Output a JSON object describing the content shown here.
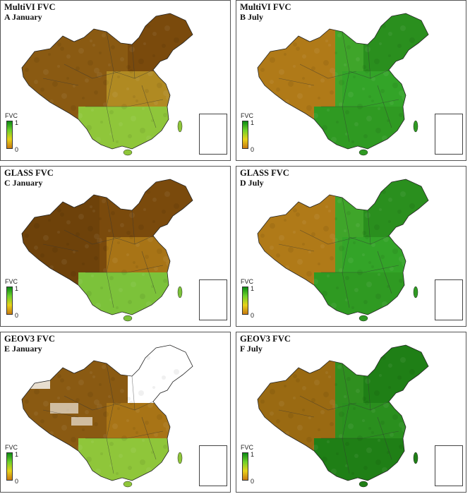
{
  "panels": [
    {
      "title": "MultiVI FVC",
      "subtitle": "A January",
      "color_scheme": "winter-mixed"
    },
    {
      "title": "MultiVI FVC",
      "subtitle": "B July",
      "color_scheme": "summer-green"
    },
    {
      "title": "GLASS FVC",
      "subtitle": "C January",
      "color_scheme": "winter-brown"
    },
    {
      "title": "GLASS FVC",
      "subtitle": "D July",
      "color_scheme": "summer-green"
    },
    {
      "title": "GEOV3 FVC",
      "subtitle": "E January",
      "color_scheme": "winter-snow"
    },
    {
      "title": "GEOV3 FVC",
      "subtitle": "F July",
      "color_scheme": "summer-dark"
    }
  ],
  "legend": {
    "label": "FVC",
    "max": "1",
    "min": "0"
  },
  "colors": {
    "low": "#c87a10",
    "mid": "#e7d21a",
    "high": "#0b8a12",
    "brown": "#7a4a0c",
    "snow": "#ffffff"
  }
}
